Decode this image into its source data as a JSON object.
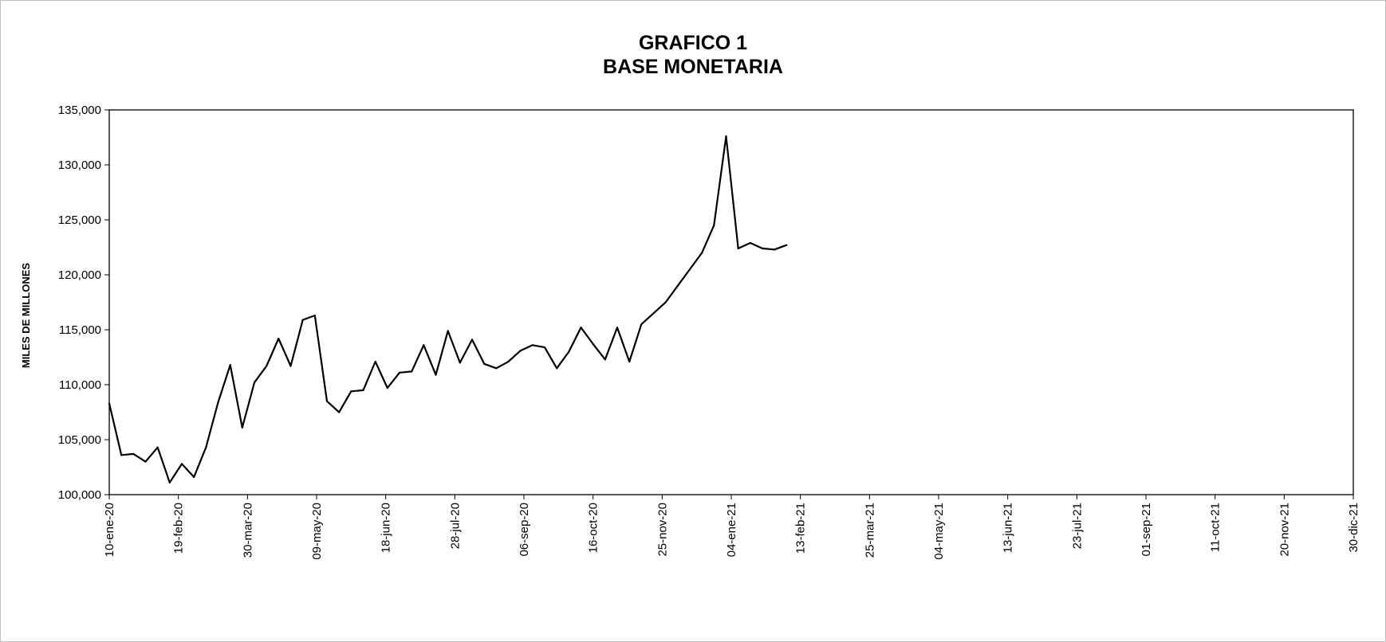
{
  "chart_data": {
    "type": "line",
    "title": "GRAFICO 1",
    "subtitle": "BASE MONETARIA",
    "xlabel": "",
    "ylabel": "MILES DE MILLONES",
    "ylim": [
      100000,
      135000
    ],
    "yticks": [
      100000,
      105000,
      110000,
      115000,
      120000,
      125000,
      130000,
      135000
    ],
    "ytick_labels": [
      "100,000",
      "105,000",
      "110,000",
      "115,000",
      "120,000",
      "125,000",
      "130,000",
      "135,000"
    ],
    "xlim": [
      "2020-01-10",
      "2021-12-30"
    ],
    "xticks": [
      "2020-01-10",
      "2020-02-19",
      "2020-03-30",
      "2020-05-09",
      "2020-06-18",
      "2020-07-28",
      "2020-09-06",
      "2020-10-16",
      "2020-11-25",
      "2021-01-04",
      "2021-02-13",
      "2021-03-25",
      "2021-05-04",
      "2021-06-13",
      "2021-07-23",
      "2021-09-01",
      "2021-10-11",
      "2021-11-20",
      "2021-12-30"
    ],
    "xtick_labels": [
      "10-ene-20",
      "19-feb-20",
      "30-mar-20",
      "09-may-20",
      "18-jun-20",
      "28-jul-20",
      "06-sep-20",
      "16-oct-20",
      "25-nov-20",
      "04-ene-21",
      "13-feb-21",
      "25-mar-21",
      "04-may-21",
      "13-jun-21",
      "23-jul-21",
      "01-sep-21",
      "11-oct-21",
      "20-nov-21",
      "30-dic-21"
    ],
    "grid": false,
    "series": [
      {
        "color": "#000000",
        "x": [
          "2020-01-10",
          "2020-01-17",
          "2020-01-24",
          "2020-01-31",
          "2020-02-07",
          "2020-02-14",
          "2020-02-21",
          "2020-02-28",
          "2020-03-06",
          "2020-03-13",
          "2020-03-20",
          "2020-03-27",
          "2020-04-03",
          "2020-04-10",
          "2020-04-17",
          "2020-04-24",
          "2020-05-01",
          "2020-05-08",
          "2020-05-15",
          "2020-05-22",
          "2020-05-29",
          "2020-06-05",
          "2020-06-12",
          "2020-06-19",
          "2020-06-26",
          "2020-07-03",
          "2020-07-10",
          "2020-07-17",
          "2020-07-24",
          "2020-07-31",
          "2020-08-07",
          "2020-08-14",
          "2020-08-21",
          "2020-08-28",
          "2020-09-04",
          "2020-09-11",
          "2020-09-18",
          "2020-09-25",
          "2020-10-02",
          "2020-10-09",
          "2020-10-16",
          "2020-10-23",
          "2020-10-30",
          "2020-11-06",
          "2020-11-13",
          "2020-11-20",
          "2020-11-27",
          "2020-12-04",
          "2020-12-11",
          "2020-12-18",
          "2020-12-25",
          "2021-01-01",
          "2021-01-08",
          "2021-01-15",
          "2021-01-22",
          "2021-01-29",
          "2021-02-05"
        ],
        "values": [
          108300,
          103600,
          103700,
          103000,
          104300,
          101100,
          102800,
          101600,
          104300,
          108400,
          111800,
          106100,
          110200,
          111700,
          114200,
          111700,
          115900,
          116300,
          108500,
          107500,
          109400,
          109500,
          112100,
          109700,
          111100,
          111200,
          113600,
          110900,
          114900,
          112000,
          114100,
          111900,
          111500,
          112100,
          113100,
          113600,
          113400,
          111500,
          113000,
          115200,
          113700,
          112300,
          115200,
          112100,
          115500,
          116500,
          117500,
          119000,
          120500,
          122000,
          124500,
          132600,
          122400,
          122900,
          122400,
          122300,
          122700
        ]
      }
    ]
  }
}
